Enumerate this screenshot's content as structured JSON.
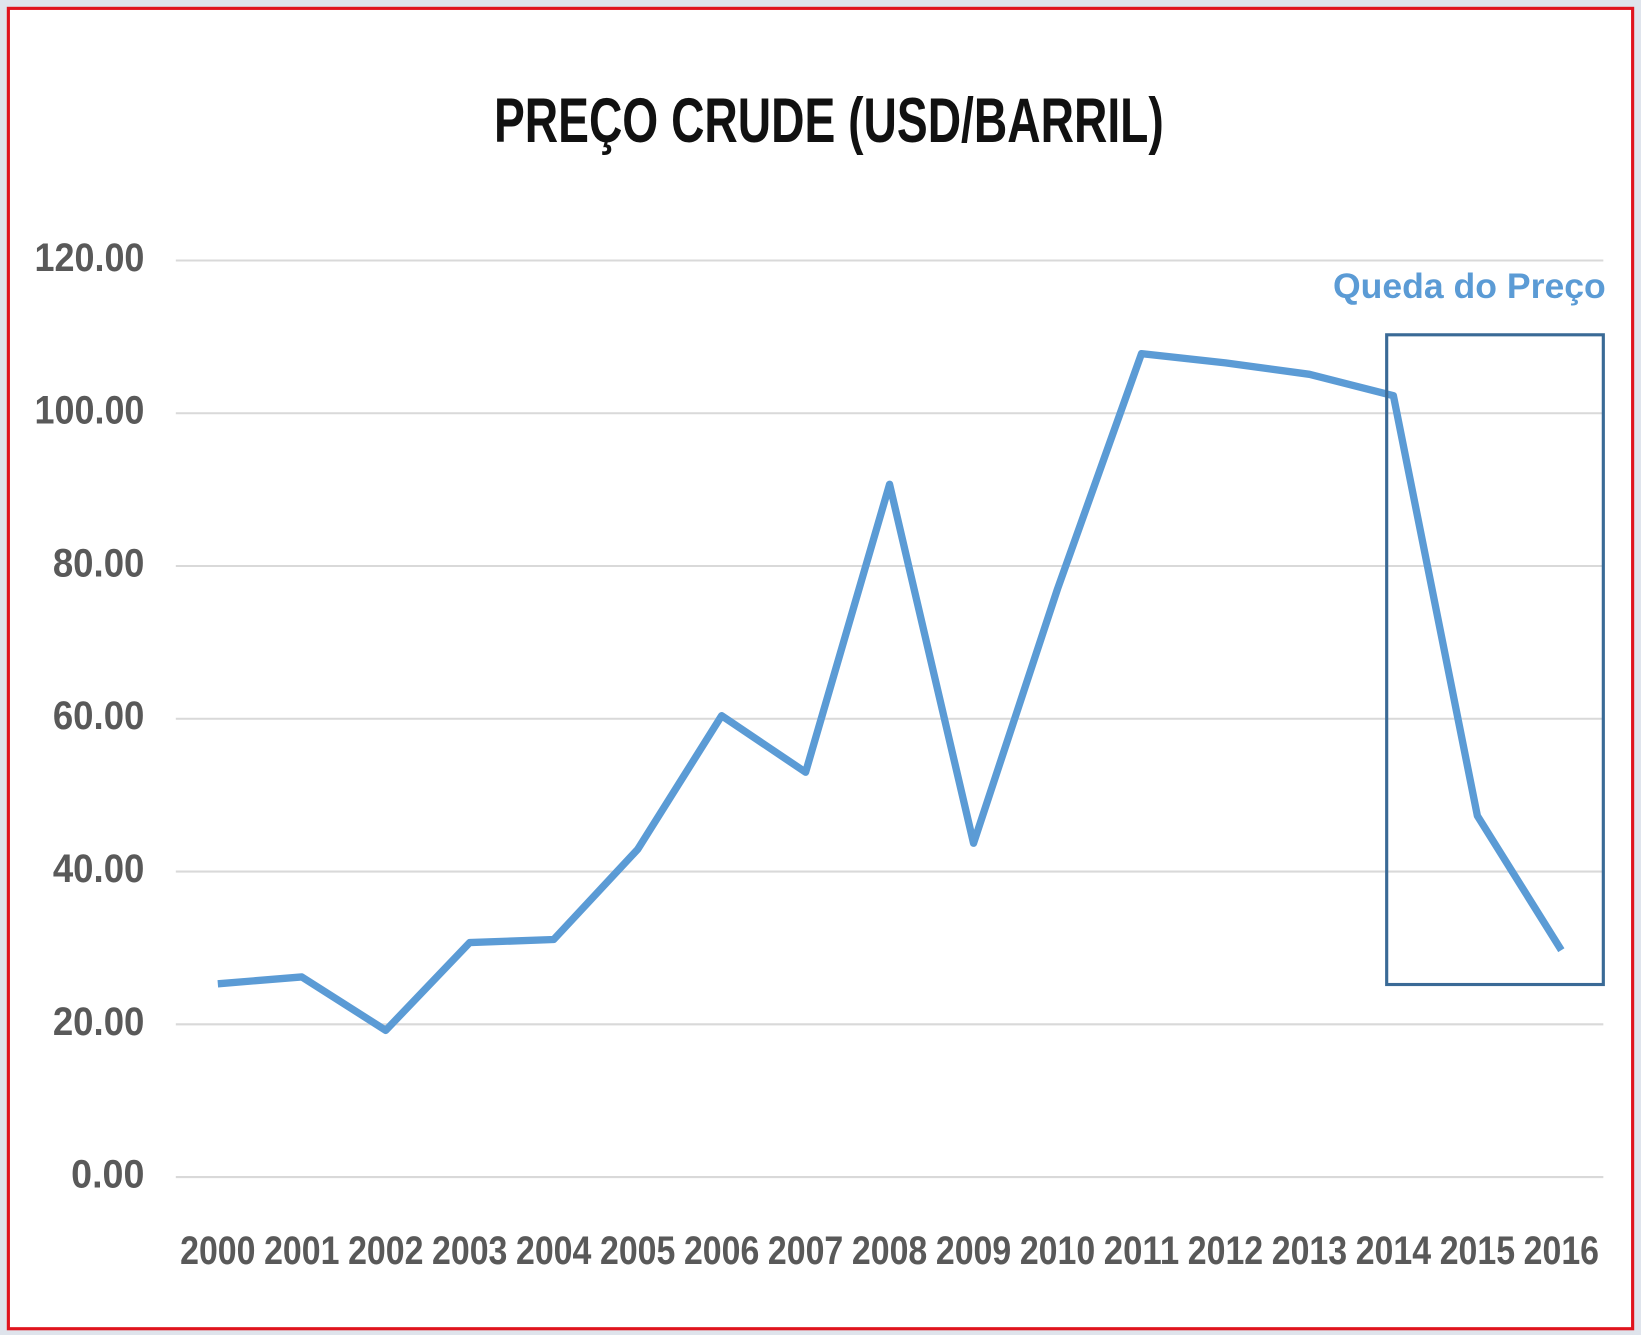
{
  "chart_data": {
    "type": "line",
    "title": "PREÇO CRUDE (USD/BARRIL)",
    "categories": [
      "2000",
      "2001",
      "2002",
      "2003",
      "2004",
      "2005",
      "2006",
      "2007",
      "2008",
      "2009",
      "2010",
      "2011",
      "2012",
      "2013",
      "2014",
      "2015",
      "2016"
    ],
    "series": [
      {
        "color": "#5b9bd5",
        "values": [
          25.3,
          26.2,
          19.2,
          30.7,
          31.1,
          42.9,
          60.4,
          53.0,
          90.7,
          43.7,
          77.0,
          107.8,
          106.6,
          105.1,
          102.3,
          47.3,
          29.7
        ]
      }
    ],
    "ylim": [
      0,
      120
    ],
    "yticks": [
      {
        "value": 0,
        "label": "0.00"
      },
      {
        "value": 20,
        "label": "20.00"
      },
      {
        "value": 40,
        "label": "40.00"
      },
      {
        "value": 60,
        "label": "60.00"
      },
      {
        "value": 80,
        "label": "80.00"
      },
      {
        "value": 100,
        "label": "100.00"
      },
      {
        "value": 120,
        "label": "120.00"
      }
    ],
    "grid": true,
    "annotations": [
      "Queda do Preço"
    ]
  }
}
